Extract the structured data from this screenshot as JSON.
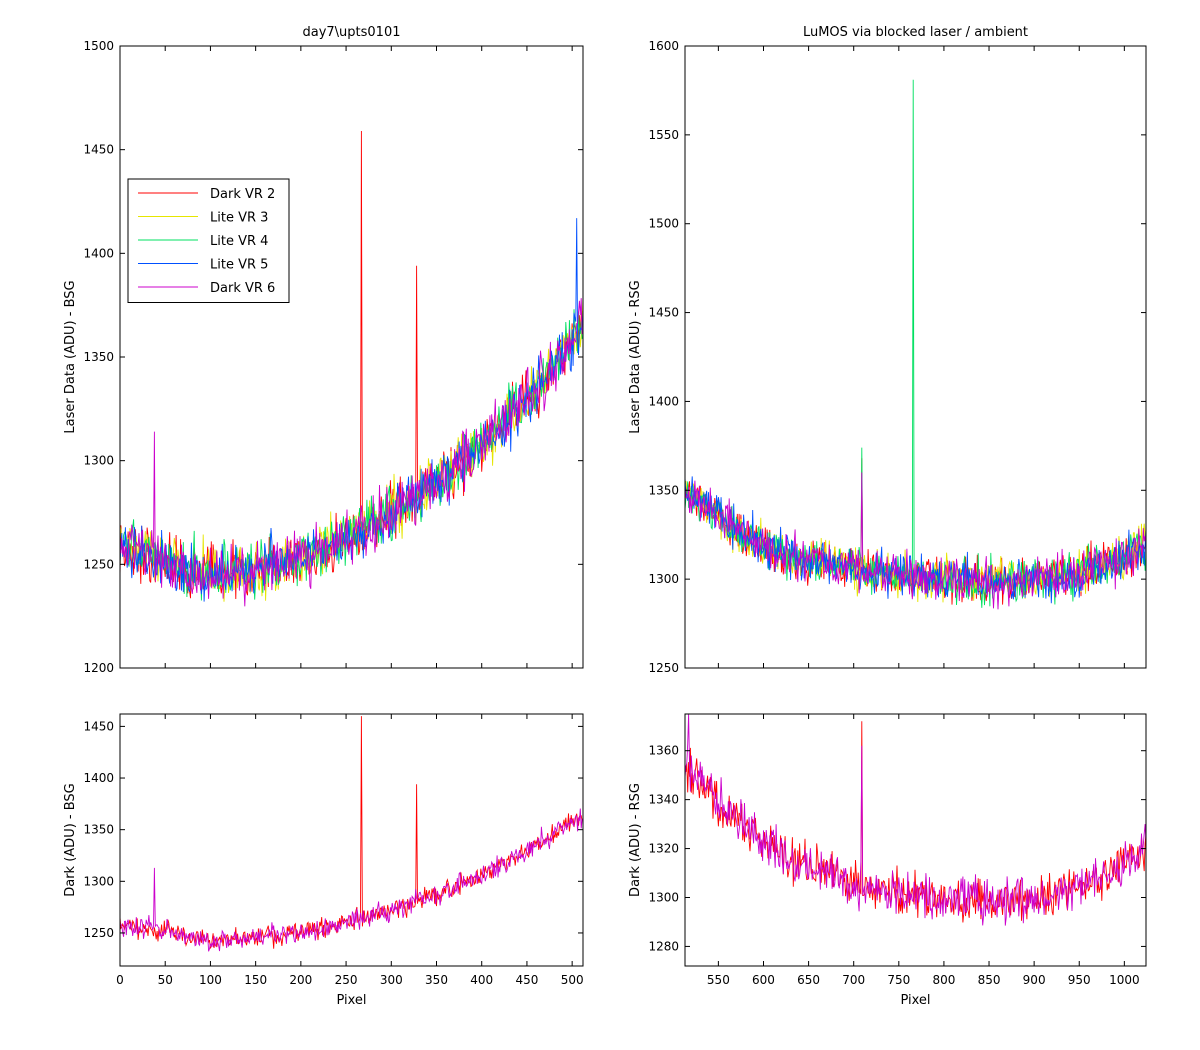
{
  "figure": {
    "background": "#ffffff",
    "line_colors": {
      "dark_vr2": "#ff0000",
      "lite_vr3": "#e6e600",
      "lite_vr4": "#00e060",
      "lite_vr5": "#0050ff",
      "dark_vr6": "#cc00cc"
    }
  },
  "chart_data": [
    {
      "id": "top-left",
      "type": "line",
      "title": "day7\\upts0101",
      "xlabel": "",
      "ylabel": "Laser Data (ADU) - BSG",
      "xlim": [
        0,
        512
      ],
      "ylim": [
        1200,
        1500
      ],
      "xticks": [
        0,
        50,
        100,
        150,
        200,
        250,
        300,
        350,
        400,
        450,
        500
      ],
      "yticks": [
        1200,
        1250,
        1300,
        1350,
        1400,
        1450,
        1500
      ],
      "xticklabels_shown": false,
      "grid": false,
      "legend": {
        "location": "upper-left",
        "entries": [
          "Dark VR 2",
          "Lite VR 3",
          "Lite VR 4",
          "Lite VR 5",
          "Dark VR 6"
        ]
      },
      "series": [
        {
          "name": "Dark VR 2",
          "color": "#ff0000"
        },
        {
          "name": "Lite VR 3",
          "color": "#e6e600"
        },
        {
          "name": "Lite VR 4",
          "color": "#00e060"
        },
        {
          "name": "Lite VR 5",
          "color": "#0050ff"
        },
        {
          "name": "Dark VR 6",
          "color": "#cc00cc"
        }
      ],
      "baseline": {
        "x": [
          0,
          50,
          100,
          150,
          200,
          250,
          300,
          350,
          400,
          450,
          500,
          512
        ],
        "y": [
          1258,
          1252,
          1245,
          1247,
          1252,
          1262,
          1275,
          1290,
          1308,
          1330,
          1358,
          1365
        ]
      },
      "noise_amplitude": 12,
      "spikes": [
        {
          "series": "Dark VR 2",
          "x": 267,
          "y": 1459
        },
        {
          "series": "Dark VR 2",
          "x": 328,
          "y": 1394
        },
        {
          "series": "Dark VR 6",
          "x": 38,
          "y": 1314
        },
        {
          "series": "Lite VR 5",
          "x": 505,
          "y": 1417
        }
      ]
    },
    {
      "id": "top-right",
      "type": "line",
      "title": "LuMOS via blocked laser / ambient",
      "xlabel": "",
      "ylabel": "Laser Data (ADU) - RSG",
      "xlim": [
        513,
        1024
      ],
      "ylim": [
        1250,
        1600
      ],
      "xticks": [
        550,
        600,
        650,
        700,
        750,
        800,
        850,
        900,
        950,
        1000
      ],
      "yticks": [
        1250,
        1300,
        1350,
        1400,
        1450,
        1500,
        1550,
        1600
      ],
      "xticklabels_shown": false,
      "grid": false,
      "series": [
        {
          "name": "Dark VR 2",
          "color": "#ff0000"
        },
        {
          "name": "Lite VR 3",
          "color": "#e6e600"
        },
        {
          "name": "Lite VR 4",
          "color": "#00e060"
        },
        {
          "name": "Lite VR 5",
          "color": "#0050ff"
        },
        {
          "name": "Dark VR 6",
          "color": "#cc00cc"
        }
      ],
      "baseline": {
        "x": [
          513,
          550,
          600,
          650,
          700,
          750,
          800,
          850,
          900,
          950,
          1000,
          1024
        ],
        "y": [
          1350,
          1335,
          1318,
          1310,
          1306,
          1302,
          1300,
          1298,
          1300,
          1303,
          1312,
          1320
        ]
      },
      "noise_amplitude": 11,
      "spikes": [
        {
          "series": "Lite VR 4",
          "x": 766,
          "y": 1581
        },
        {
          "series": "Lite VR 4",
          "x": 709,
          "y": 1374
        },
        {
          "series": "Dark VR 2",
          "x": 709,
          "y": 1368
        },
        {
          "series": "Dark VR 6",
          "x": 709,
          "y": 1360
        }
      ]
    },
    {
      "id": "bottom-left",
      "type": "line",
      "title": "",
      "xlabel": "Pixel",
      "ylabel": "Dark (ADU) - BSG",
      "xlim": [
        0,
        512
      ],
      "ylim": [
        1218,
        1462
      ],
      "xticks": [
        0,
        50,
        100,
        150,
        200,
        250,
        300,
        350,
        400,
        450,
        500
      ],
      "yticks": [
        1250,
        1300,
        1350,
        1400,
        1450
      ],
      "xticklabels_shown": true,
      "grid": false,
      "series": [
        {
          "name": "Dark VR 2",
          "color": "#ff0000"
        },
        {
          "name": "Dark VR 6",
          "color": "#cc00cc"
        }
      ],
      "baseline": {
        "x": [
          0,
          50,
          100,
          150,
          200,
          250,
          300,
          350,
          400,
          450,
          500,
          512
        ],
        "y": [
          1258,
          1252,
          1242,
          1245,
          1250,
          1260,
          1272,
          1288,
          1305,
          1330,
          1358,
          1362
        ]
      },
      "noise_amplitude": 9,
      "spikes": [
        {
          "series": "Dark VR 2",
          "x": 267,
          "y": 1460
        },
        {
          "series": "Dark VR 2",
          "x": 328,
          "y": 1394
        },
        {
          "series": "Dark VR 6",
          "x": 38,
          "y": 1313
        }
      ]
    },
    {
      "id": "bottom-right",
      "type": "line",
      "title": "",
      "xlabel": "Pixel",
      "ylabel": "Dark (ADU) - RSG",
      "xlim": [
        513,
        1024
      ],
      "ylim": [
        1272,
        1375
      ],
      "xticks": [
        550,
        600,
        650,
        700,
        750,
        800,
        850,
        900,
        950,
        1000
      ],
      "yticks": [
        1280,
        1300,
        1320,
        1340,
        1360
      ],
      "xticklabels_shown": true,
      "grid": false,
      "series": [
        {
          "name": "Dark VR 2",
          "color": "#ff0000"
        },
        {
          "name": "Dark VR 6",
          "color": "#cc00cc"
        }
      ],
      "baseline": {
        "x": [
          513,
          550,
          600,
          650,
          700,
          750,
          800,
          850,
          900,
          950,
          1000,
          1024
        ],
        "y": [
          1355,
          1338,
          1322,
          1312,
          1306,
          1302,
          1300,
          1298,
          1300,
          1304,
          1314,
          1322
        ]
      },
      "noise_amplitude": 8,
      "spikes": [
        {
          "series": "Dark VR 2",
          "x": 709,
          "y": 1372
        },
        {
          "series": "Dark VR 6",
          "x": 709,
          "y": 1362
        },
        {
          "series": "Dark VR 6",
          "x": 517,
          "y": 1375
        }
      ]
    }
  ]
}
